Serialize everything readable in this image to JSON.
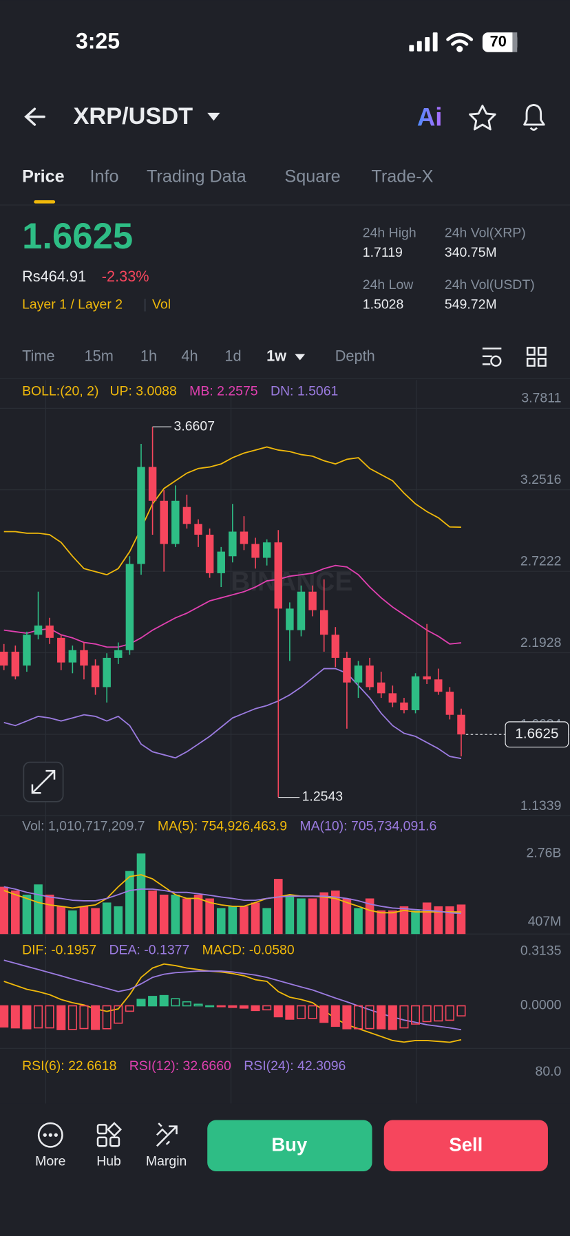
{
  "status_bar": {
    "time": "3:25",
    "battery": "70"
  },
  "header": {
    "pair": "XRP/USDT",
    "ai": "Ai"
  },
  "tabs": [
    "Price",
    "Info",
    "Trading Data",
    "Square",
    "Trade-X"
  ],
  "ticker": {
    "price": "1.6625",
    "fiat": "Rs464.91",
    "change": "-2.33%",
    "tags": [
      "Layer 1 / Layer 2",
      "Vol"
    ],
    "stats": [
      {
        "label": "24h High",
        "value": "1.7119"
      },
      {
        "label": "24h Vol(XRP)",
        "value": "340.75M"
      },
      {
        "label": "24h Low",
        "value": "1.5028"
      },
      {
        "label": "24h Vol(USDT)",
        "value": "549.72M"
      }
    ]
  },
  "timeframes": [
    "Time",
    "15m",
    "1h",
    "4h",
    "1d",
    "1w",
    "Depth"
  ],
  "chart_data": [
    {
      "type": "candlestick",
      "indicator": "BOLL:(20, 2)",
      "watermark": "BINANCE",
      "up_color": "#2ebd85",
      "down_color": "#f6465d",
      "ylim": [
        1.1339,
        3.965
      ],
      "yticks": [
        3.7811,
        3.2516,
        2.7222,
        2.1928,
        1.6634,
        1.1339
      ],
      "grid": true,
      "open": [
        2.2,
        2.2,
        2.11,
        2.31,
        2.37,
        2.29,
        2.13,
        2.21,
        2.11,
        1.97,
        2.16,
        2.21,
        2.77,
        3.4,
        3.18,
        2.9,
        3.14,
        3.03,
        2.96,
        2.71,
        2.82,
        2.98,
        2.9,
        2.81,
        2.91,
        2.34,
        2.34,
        2.59,
        2.47,
        2.31,
        2.16,
        2.0,
        2.11,
        2.0,
        1.93,
        1.87,
        1.82,
        2.04,
        2.02,
        1.94,
        1.79
      ],
      "high": [
        2.25,
        2.24,
        2.33,
        2.59,
        2.42,
        2.31,
        2.24,
        2.26,
        2.15,
        2.19,
        2.26,
        2.82,
        3.55,
        3.6607,
        3.25,
        3.28,
        3.22,
        3.06,
        3.0,
        2.88,
        3.16,
        3.08,
        2.94,
        2.93,
        2.99,
        2.52,
        2.63,
        2.63,
        2.67,
        2.36,
        2.2,
        2.14,
        2.16,
        2.07,
        1.98,
        1.9,
        2.06,
        2.38,
        2.09,
        1.97,
        1.83
      ],
      "low": [
        2.08,
        2.02,
        2.07,
        2.28,
        2.25,
        2.08,
        2.06,
        2.02,
        1.92,
        1.87,
        2.12,
        2.18,
        2.7,
        2.96,
        2.72,
        2.88,
        3.0,
        2.88,
        2.68,
        2.62,
        2.78,
        2.86,
        2.74,
        2.76,
        1.2543,
        2.14,
        2.3,
        2.43,
        2.2,
        2.1,
        1.7,
        1.9,
        1.95,
        1.9,
        1.84,
        1.8,
        1.8,
        1.99,
        1.92,
        1.76,
        1.52
      ],
      "close": [
        2.11,
        2.04,
        2.31,
        2.37,
        2.29,
        2.13,
        2.21,
        2.11,
        1.97,
        2.16,
        2.21,
        2.77,
        3.4,
        3.18,
        2.9,
        3.18,
        3.03,
        2.96,
        2.71,
        2.85,
        2.98,
        2.9,
        2.81,
        2.91,
        2.48,
        2.48,
        2.59,
        2.47,
        2.31,
        2.16,
        2.0,
        2.11,
        1.97,
        1.93,
        1.87,
        1.82,
        2.04,
        2.02,
        1.94,
        1.79,
        1.6625
      ],
      "series": [
        {
          "name": "UP: 3.0088",
          "color": "#f0b90b",
          "values": [
            2.98,
            2.98,
            2.97,
            2.97,
            2.96,
            2.91,
            2.82,
            2.74,
            2.72,
            2.7,
            2.74,
            2.85,
            3.0,
            3.16,
            3.26,
            3.31,
            3.36,
            3.39,
            3.4,
            3.42,
            3.46,
            3.49,
            3.51,
            3.53,
            3.51,
            3.5,
            3.48,
            3.47,
            3.44,
            3.42,
            3.45,
            3.46,
            3.39,
            3.35,
            3.31,
            3.23,
            3.16,
            3.11,
            3.07,
            3.01,
            3.0088
          ]
        },
        {
          "name": "MB: 2.2575",
          "color": "#e040b0",
          "values": [
            2.34,
            2.33,
            2.32,
            2.34,
            2.35,
            2.31,
            2.29,
            2.26,
            2.25,
            2.23,
            2.23,
            2.25,
            2.29,
            2.34,
            2.38,
            2.42,
            2.45,
            2.49,
            2.53,
            2.55,
            2.57,
            2.59,
            2.62,
            2.66,
            2.67,
            2.69,
            2.7,
            2.71,
            2.74,
            2.76,
            2.75,
            2.7,
            2.62,
            2.55,
            2.49,
            2.44,
            2.39,
            2.34,
            2.3,
            2.25,
            2.2575
          ]
        },
        {
          "name": "DN: 1.5061",
          "color": "#9b7be0",
          "values": [
            1.74,
            1.72,
            1.75,
            1.78,
            1.77,
            1.75,
            1.77,
            1.79,
            1.78,
            1.75,
            1.78,
            1.72,
            1.6,
            1.55,
            1.53,
            1.51,
            1.55,
            1.6,
            1.65,
            1.71,
            1.77,
            1.8,
            1.83,
            1.85,
            1.88,
            1.92,
            1.97,
            2.03,
            2.09,
            2.09,
            2.06,
            1.98,
            1.9,
            1.8,
            1.72,
            1.67,
            1.65,
            1.61,
            1.57,
            1.52,
            1.5061
          ]
        }
      ]
    },
    {
      "type": "bar",
      "ylim": [
        0,
        3160000000
      ],
      "yticks": [
        {
          "value": 2760000000,
          "label": "2.76B"
        },
        {
          "value": 407000000,
          "label": "407M"
        }
      ],
      "series": [
        {
          "name": "Vol: 1,010,717,209.7",
          "kind": "bar",
          "values": [
            1620000000,
            1490000000,
            1350000000,
            1700000000,
            1350000000,
            950000000,
            810000000,
            950000000,
            890000000,
            1080000000,
            950000000,
            2160000000,
            2760000000,
            1490000000,
            1350000000,
            1350000000,
            1220000000,
            1350000000,
            1220000000,
            890000000,
            950000000,
            950000000,
            1080000000,
            890000000,
            1890000000,
            1350000000,
            1220000000,
            1220000000,
            1430000000,
            1490000000,
            1220000000,
            890000000,
            1220000000,
            810000000,
            810000000,
            950000000,
            810000000,
            1080000000,
            950000000,
            950000000,
            1010717209.7
          ]
        },
        {
          "name": "MA(5): 754,926,463.9",
          "kind": "line",
          "color": "#f0b90b",
          "values": [
            1490000000,
            1350000000,
            1220000000,
            1080000000,
            1000000000,
            950000000,
            890000000,
            950000000,
            1000000000,
            1220000000,
            1620000000,
            1970000000,
            2030000000,
            1890000000,
            1620000000,
            1350000000,
            1220000000,
            1220000000,
            1080000000,
            1000000000,
            950000000,
            950000000,
            1080000000,
            1220000000,
            1270000000,
            1350000000,
            1300000000,
            1300000000,
            1270000000,
            1220000000,
            1080000000,
            950000000,
            810000000,
            730000000,
            730000000,
            810000000,
            760000000,
            760000000,
            760000000,
            760000000,
            754926463.9
          ]
        },
        {
          "name": "MA(10): 705,734,091.6",
          "kind": "line",
          "color": "#9b7be0",
          "values": [
            1620000000,
            1540000000,
            1430000000,
            1350000000,
            1270000000,
            1220000000,
            1160000000,
            1140000000,
            1140000000,
            1220000000,
            1350000000,
            1490000000,
            1540000000,
            1540000000,
            1490000000,
            1430000000,
            1430000000,
            1380000000,
            1330000000,
            1270000000,
            1220000000,
            1160000000,
            1160000000,
            1220000000,
            1270000000,
            1300000000,
            1300000000,
            1300000000,
            1300000000,
            1270000000,
            1220000000,
            1140000000,
            1030000000,
            950000000,
            890000000,
            870000000,
            840000000,
            810000000,
            780000000,
            730000000,
            705734091.6
          ]
        }
      ]
    },
    {
      "type": "line",
      "ylim": [
        -0.245,
        0.4
      ],
      "yticks": [
        0.3135,
        {
          "value": 0,
          "label": "0.0000"
        }
      ],
      "series": [
        {
          "name": "DIF: -0.1957",
          "kind": "line",
          "color": "#f0b90b",
          "values": [
            0.141,
            0.118,
            0.095,
            0.082,
            0.064,
            0.036,
            0.018,
            0.005,
            -0.018,
            -0.032,
            -0.018,
            0.064,
            0.164,
            0.218,
            0.241,
            0.232,
            0.218,
            0.209,
            0.2,
            0.195,
            0.186,
            0.173,
            0.15,
            0.141,
            0.082,
            0.05,
            0.036,
            0.018,
            -0.027,
            -0.073,
            -0.109,
            -0.132,
            -0.154,
            -0.177,
            -0.2,
            -0.209,
            -0.2,
            -0.2,
            -0.205,
            -0.21,
            -0.1957
          ]
        },
        {
          "name": "DEA: -0.1377",
          "kind": "line",
          "color": "#9b7be0",
          "values": [
            0.263,
            0.245,
            0.227,
            0.209,
            0.191,
            0.173,
            0.154,
            0.136,
            0.118,
            0.1,
            0.082,
            0.095,
            0.127,
            0.164,
            0.182,
            0.191,
            0.195,
            0.2,
            0.2,
            0.2,
            0.195,
            0.186,
            0.177,
            0.164,
            0.145,
            0.127,
            0.109,
            0.091,
            0.068,
            0.045,
            0.023,
            0,
            -0.023,
            -0.045,
            -0.064,
            -0.082,
            -0.095,
            -0.109,
            -0.118,
            -0.127,
            -0.1377
          ]
        },
        {
          "name": "MACD: -0.0580",
          "kind": "bar",
          "color": "#f0b90b",
          "values": [
            -0.122,
            -0.127,
            -0.132,
            -0.127,
            -0.127,
            -0.137,
            -0.136,
            -0.131,
            -0.136,
            -0.132,
            -0.1,
            -0.031,
            0.037,
            0.054,
            0.059,
            0.041,
            0.023,
            0.009,
            0,
            -0.005,
            -0.009,
            -0.013,
            -0.027,
            -0.023,
            -0.063,
            -0.077,
            -0.073,
            -0.073,
            -0.095,
            -0.118,
            -0.132,
            -0.132,
            -0.131,
            -0.132,
            -0.136,
            -0.127,
            -0.105,
            -0.091,
            -0.087,
            -0.083,
            -0.058
          ]
        }
      ]
    },
    {
      "type": "line",
      "ylim": [
        0,
        100
      ],
      "yticks": [
        {
          "value": 80,
          "label": "80.0"
        }
      ],
      "series": [
        {
          "name": "RSI(6): 22.6618",
          "color": "#f0b90b"
        },
        {
          "name": "RSI(12): 32.6660",
          "color": "#e040b0"
        },
        {
          "name": "RSI(24): 42.3096",
          "color": "#9b7be0"
        }
      ]
    }
  ],
  "bottom_bar": {
    "items": [
      "More",
      "Hub",
      "Margin"
    ],
    "buy": "Buy",
    "sell": "Sell"
  }
}
